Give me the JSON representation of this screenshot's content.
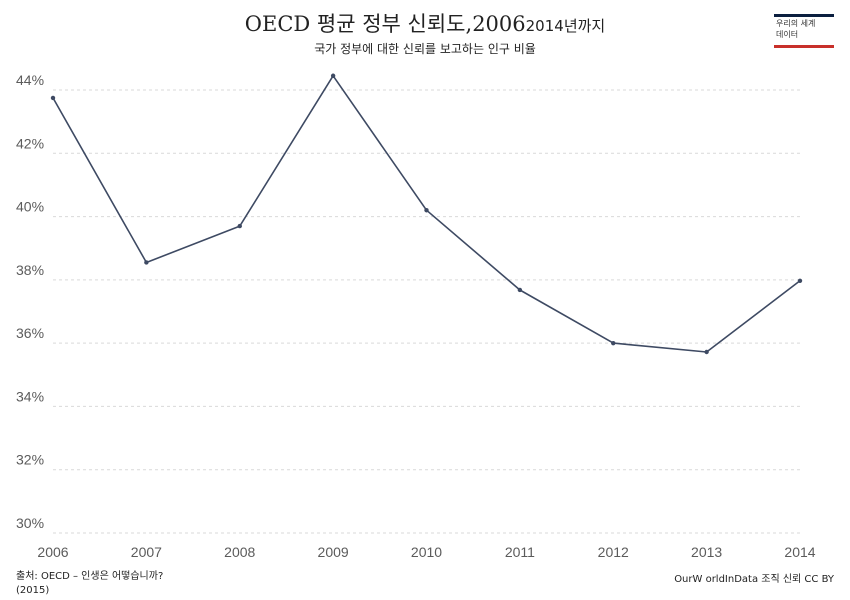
{
  "header": {
    "title_part1": "OECD 평균 정부 신뢰도,",
    "title_part2": "2006",
    "title_part3": "2014년까지",
    "subtitle": "국가 정부에 대한 신뢰를 보고하는 인구 비율"
  },
  "logo": {
    "line1": "우리의 세계",
    "line2": "데이터",
    "accent_top": "#0b1f3f",
    "accent_bottom": "#c8302a"
  },
  "footer": {
    "source_line1": "출처: OECD – 인생은 어떻습니까?",
    "source_line2": "(2015)",
    "license": "OurW orldInData 조직 신뢰 CC BY"
  },
  "chart_data": {
    "type": "line",
    "x": [
      2006,
      2007,
      2008,
      2009,
      2010,
      2011,
      2012,
      2013,
      2014
    ],
    "series": [
      {
        "values": [
          43.75,
          38.55,
          39.7,
          44.45,
          40.2,
          37.68,
          36.0,
          35.72,
          37.97
        ],
        "color": "#3e4a63"
      }
    ],
    "ylim": [
      30,
      44
    ],
    "y_ticks": [
      30,
      32,
      34,
      36,
      38,
      40,
      42,
      44
    ],
    "y_tick_labels": [
      "30%",
      "32%",
      "34%",
      "36%",
      "38%",
      "40%",
      "42%",
      "44%"
    ],
    "x_tick_labels": [
      "2006",
      "2007",
      "2008",
      "2009",
      "2010",
      "2011",
      "2012",
      "2013",
      "2014"
    ],
    "grid": true,
    "grid_color": "#d9d9d9"
  }
}
